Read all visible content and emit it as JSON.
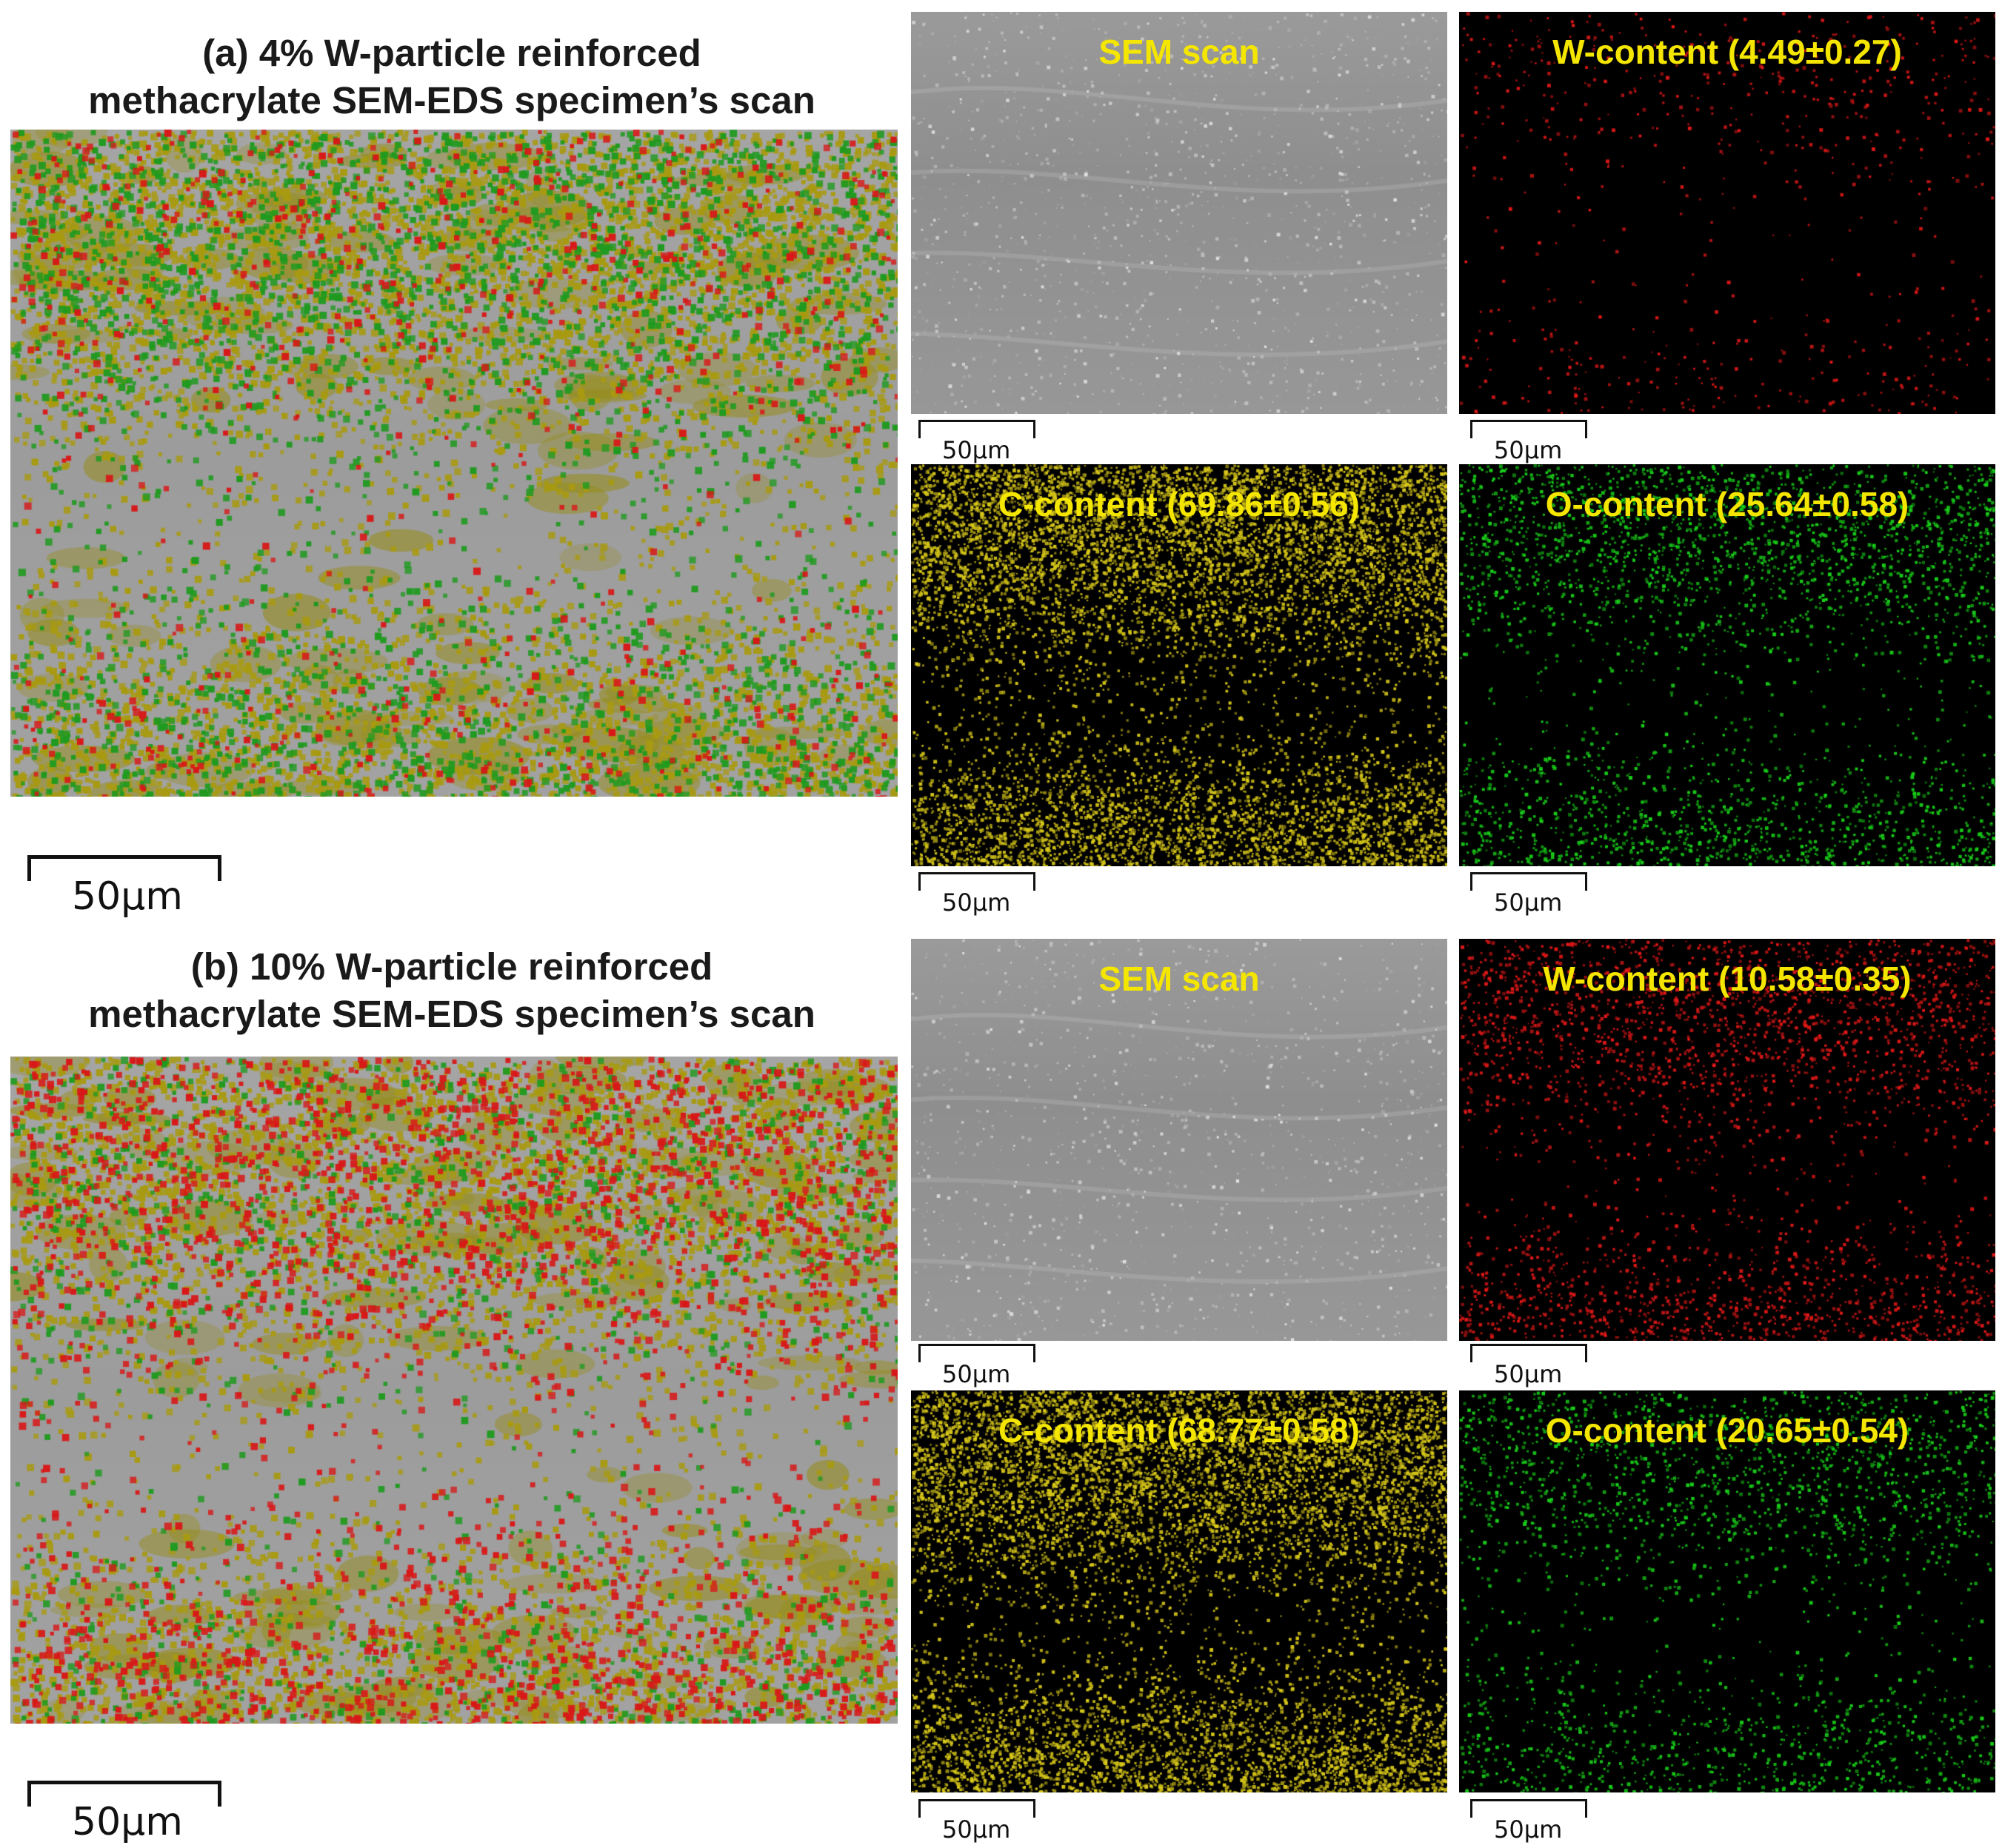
{
  "figure": {
    "a": {
      "title_line1": "(a) 4% W-particle reinforced",
      "title_line2": "methacrylate SEM-EDS specimen’s scan",
      "scale_label": "50µm",
      "panels": {
        "sem": {
          "label": "SEM scan",
          "scale": "50µm"
        },
        "w": {
          "label": "W-content (4.49±0.27)",
          "scale": "50µm",
          "color": "#e01818"
        },
        "c": {
          "label": "C-content (69.86±0.56)",
          "scale": "50µm",
          "color": "#d8c81a"
        },
        "o": {
          "label": "O-content (25.64±0.58)",
          "scale": "50µm",
          "color": "#19d019"
        }
      }
    },
    "b": {
      "title_line1": "(b) 10% W-particle reinforced",
      "title_line2": "methacrylate SEM-EDS specimen’s scan",
      "scale_label": "50µm",
      "panels": {
        "sem": {
          "label": "SEM scan",
          "scale": "50µm"
        },
        "w": {
          "label": "W-content (10.58±0.35)",
          "scale": "50µm",
          "color": "#e01818"
        },
        "c": {
          "label": "C-content (68.77±0.58)",
          "scale": "50µm",
          "color": "#d8c81a"
        },
        "o": {
          "label": "O-content (20.65±0.54)",
          "scale": "50µm",
          "color": "#19d019"
        }
      }
    },
    "label_color": "#f5e600"
  }
}
